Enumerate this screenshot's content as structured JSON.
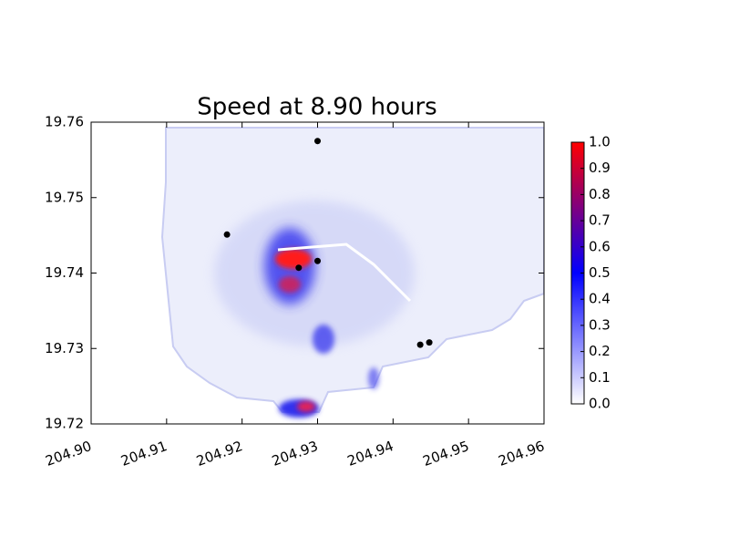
{
  "chart_data": {
    "type": "scatter",
    "title": "Speed at 8.90 hours",
    "x": [
      204.93,
      204.918,
      204.9275,
      204.93,
      204.9436,
      204.9448
    ],
    "y": [
      19.7575,
      19.7451,
      19.7407,
      19.7416,
      19.7305,
      19.7308
    ],
    "color": "#000000",
    "xlim": [
      204.9,
      204.96
    ],
    "xticks": [
      {
        "value": 204.9,
        "label": "204.90"
      },
      204.91,
      204.92,
      204.93,
      204.94,
      204.95,
      204.96
    ],
    "ylim": [
      19.72,
      19.76
    ],
    "yticks": [
      19.72,
      19.73,
      19.74,
      19.75,
      19.76
    ],
    "colorbar": {
      "lim": [
        0,
        1
      ],
      "ticks": [
        {
          "value": 0,
          "label": "0.0"
        },
        0.1,
        0.2,
        0.3,
        0.4,
        0.5,
        0.6,
        0.7,
        0.8,
        0.9,
        {
          "value": 1,
          "label": "1.0"
        }
      ],
      "colors": [
        "#ffffff",
        "#0000ff",
        "#ff0000"
      ]
    }
  }
}
